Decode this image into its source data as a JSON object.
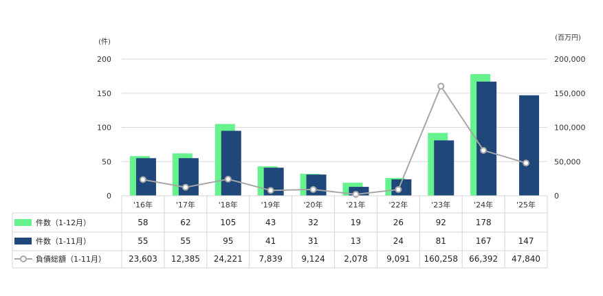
{
  "chart_data": {
    "type": "bar",
    "categories": [
      "'16年",
      "'17年",
      "'18年",
      "'19年",
      "'20年",
      "'21年",
      "'22年",
      "'23年",
      "'24年",
      "'25年"
    ],
    "series": [
      {
        "name": "件数（1-12月）",
        "type": "bar",
        "axis": "left",
        "color": "#66f28f",
        "values": [
          58,
          62,
          105,
          43,
          32,
          19,
          26,
          92,
          178,
          null
        ]
      },
      {
        "name": "件数（1-11月）",
        "type": "bar",
        "axis": "left",
        "color": "#1f477a",
        "values": [
          55,
          55,
          95,
          41,
          31,
          13,
          24,
          81,
          167,
          147
        ]
      },
      {
        "name": "負債総額（1-11月）",
        "type": "line",
        "axis": "right",
        "color": "#a6a6a6",
        "values": [
          23603,
          12385,
          24221,
          7839,
          9124,
          2078,
          9091,
          160258,
          66392,
          47840
        ]
      }
    ],
    "table_values": [
      [
        "58",
        "62",
        "105",
        "43",
        "32",
        "19",
        "26",
        "92",
        "178",
        ""
      ],
      [
        "55",
        "55",
        "95",
        "41",
        "31",
        "13",
        "24",
        "81",
        "167",
        "147"
      ],
      [
        "23,603",
        "12,385",
        "24,221",
        "7,839",
        "9,124",
        "2,078",
        "9,091",
        "160,258",
        "66,392",
        "47,840"
      ]
    ],
    "y_left": {
      "unit": "(件)",
      "ylim": [
        0,
        200
      ],
      "ticks": [
        "0",
        "50",
        "100",
        "150",
        "200"
      ]
    },
    "y_right": {
      "unit": "(百万円)",
      "ylim": [
        0,
        200000
      ],
      "ticks": [
        "0",
        "50,000",
        "100,000",
        "150,000",
        "200,000"
      ]
    },
    "grid": true,
    "legend": "data-table-left"
  }
}
